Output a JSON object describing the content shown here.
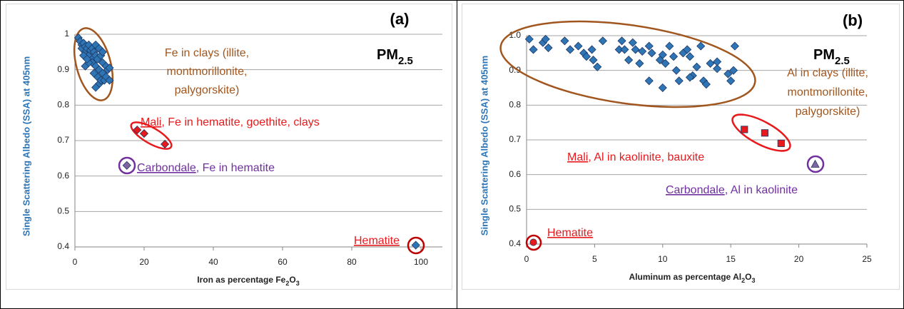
{
  "chart_data": [
    {
      "type": "scatter",
      "title": "(a)",
      "label_parts": [
        {
          "text": "PM"
        },
        {
          "text": "2.5",
          "sub": true
        }
      ],
      "ylabel": "Single Scattering Albedo (SSA) at 405nm",
      "xlabel_parts": [
        {
          "text": "Iron as percentage Fe"
        },
        {
          "text": "2",
          "sub": true
        },
        {
          "text": "O"
        },
        {
          "text": "3",
          "sub": true
        }
      ],
      "xlim": [
        0,
        100
      ],
      "xticks": [
        0,
        20,
        40,
        60,
        80,
        100
      ],
      "ylim": [
        0.4,
        1
      ],
      "yticks": [
        0.4,
        0.5,
        0.6,
        0.7,
        0.8,
        0.9,
        1
      ],
      "grid": true,
      "annotations": [
        {
          "color": "#a0561e",
          "parts": [
            {
              "text": "Fe in clays (illite,"
            }
          ]
        },
        {
          "color": "#a0561e",
          "parts": [
            {
              "text": "montmorillonite,"
            }
          ]
        },
        {
          "color": "#a0561e",
          "parts": [
            {
              "text": "palygorskite)"
            }
          ]
        },
        {
          "color": "#e8191c",
          "parts": [
            {
              "text": "Mali",
              "underline": true
            },
            {
              "text": ", Fe in hematite, goethite, clays"
            }
          ]
        },
        {
          "color": "#7030a0",
          "parts": [
            {
              "text": "Carbondale",
              "underline": true
            },
            {
              "text": ", Fe in hematite"
            }
          ]
        },
        {
          "color": "#e8191c",
          "parts": [
            {
              "text": "Hematite",
              "underline": true
            }
          ]
        }
      ],
      "series": [
        {
          "color": "#2e75b6",
          "marker": "diamond",
          "ring_color": "#a0561e",
          "x": [
            1,
            1.5,
            2,
            2,
            2.5,
            3,
            3,
            3.5,
            3,
            4,
            4,
            4.5,
            5,
            5,
            5.5,
            5,
            6,
            6,
            6,
            6.5,
            6.5,
            7,
            7,
            7,
            7.5,
            7.5,
            8,
            8,
            8,
            8.5,
            9,
            9,
            9.5,
            10,
            10,
            6,
            4,
            2.5,
            3.5,
            5.5
          ],
          "values": [
            0.99,
            0.98,
            0.97,
            0.96,
            0.975,
            0.965,
            0.95,
            0.96,
            0.91,
            0.97,
            0.94,
            0.955,
            0.96,
            0.93,
            0.95,
            0.92,
            0.97,
            0.94,
            0.91,
            0.93,
            0.88,
            0.96,
            0.9,
            0.86,
            0.94,
            0.87,
            0.95,
            0.92,
            0.89,
            0.87,
            0.91,
            0.88,
            0.9,
            0.87,
            0.905,
            0.85,
            0.92,
            0.94,
            0.93,
            0.89
          ]
        },
        {
          "color": "#e8191c",
          "marker": "diamond",
          "ring_color": "#e8191c",
          "x": [
            18,
            20,
            26
          ],
          "values": [
            0.73,
            0.72,
            0.69
          ]
        },
        {
          "color": "#8064a2",
          "marker": "diamond",
          "ring_color": "#7030a0",
          "x": [
            15
          ],
          "values": [
            0.63
          ]
        },
        {
          "color": "#2e75b6",
          "marker": "diamond",
          "ring_color": "#c00000",
          "x": [
            98.5
          ],
          "values": [
            0.405
          ]
        }
      ]
    },
    {
      "type": "scatter",
      "title": "(b)",
      "label_parts": [
        {
          "text": "PM"
        },
        {
          "text": "2.5",
          "sub": true
        }
      ],
      "ylabel": "Single Scattering Albedo (SSA) at 405nm",
      "xlabel_parts": [
        {
          "text": "Aluminum as percentage Al"
        },
        {
          "text": "2",
          "sub": true
        },
        {
          "text": "O"
        },
        {
          "text": "3",
          "sub": true
        }
      ],
      "xlim": [
        0,
        25
      ],
      "xticks": [
        0,
        5,
        10,
        15,
        20,
        25
      ],
      "ylim": [
        0.4,
        1
      ],
      "yticks": [
        {
          "value": 0.4,
          "label": "0.4"
        },
        0.5,
        0.6,
        0.7,
        0.8,
        0.9,
        {
          "value": 1,
          "label": "1.0"
        }
      ],
      "grid": true,
      "annotations": [
        {
          "color": "#a0561e",
          "parts": [
            {
              "text": "Al in clays (illite,"
            }
          ]
        },
        {
          "color": "#a0561e",
          "parts": [
            {
              "text": "montmorillonite,"
            }
          ]
        },
        {
          "color": "#a0561e",
          "parts": [
            {
              "text": "palygorskite)"
            }
          ]
        },
        {
          "color": "#e8191c",
          "parts": [
            {
              "text": "Mali",
              "underline": true
            },
            {
              "text": ", Al in kaolinite, bauxite"
            }
          ]
        },
        {
          "color": "#7030a0",
          "parts": [
            {
              "text": "Carbondale",
              "underline": true
            },
            {
              "text": ", Al in kaolinite"
            }
          ]
        },
        {
          "color": "#e8191c",
          "parts": [
            {
              "text": "Hematite",
              "underline": true
            }
          ]
        }
      ],
      "series": [
        {
          "color": "#2e75b6",
          "marker": "diamond",
          "ring_color": "#a0561e",
          "x": [
            0.2,
            0.5,
            1.2,
            1.4,
            1.6,
            2.8,
            3.2,
            3.8,
            4.2,
            4.4,
            4.8,
            4.9,
            5.2,
            5.6,
            6.8,
            7,
            7.2,
            7.5,
            7.8,
            8,
            8.3,
            9,
            9.2,
            9,
            9.8,
            10,
            10.2,
            10,
            10.5,
            10.8,
            11,
            11.2,
            11.5,
            11.8,
            12,
            12.2,
            12.5,
            12.8,
            13,
            13.2,
            13.5,
            14,
            14.8,
            15,
            15.3,
            15.2,
            14,
            8.5,
            12
          ],
          "values": [
            0.99,
            0.96,
            0.98,
            0.99,
            0.965,
            0.985,
            0.96,
            0.97,
            0.95,
            0.94,
            0.96,
            0.93,
            0.91,
            0.985,
            0.96,
            0.985,
            0.96,
            0.93,
            0.98,
            0.96,
            0.92,
            0.97,
            0.95,
            0.87,
            0.93,
            0.945,
            0.92,
            0.85,
            0.97,
            0.94,
            0.9,
            0.87,
            0.95,
            0.96,
            0.94,
            0.885,
            0.91,
            0.97,
            0.87,
            0.86,
            0.92,
            0.905,
            0.89,
            0.87,
            0.97,
            0.9,
            0.925,
            0.955,
            0.88
          ]
        },
        {
          "color": "#e8191c",
          "marker": "square",
          "ring_color": "#e8191c",
          "x": [
            16,
            17.5,
            18.7
          ],
          "values": [
            0.73,
            0.72,
            0.69
          ]
        },
        {
          "color": "#8064a2",
          "marker": "triangle",
          "ring_color": "#7030a0",
          "x": [
            21.2
          ],
          "values": [
            0.63
          ]
        },
        {
          "color": "#e8191c",
          "marker": "circle",
          "ring_color": "#c00000",
          "x": [
            0.5
          ],
          "values": [
            0.405
          ]
        }
      ]
    }
  ]
}
